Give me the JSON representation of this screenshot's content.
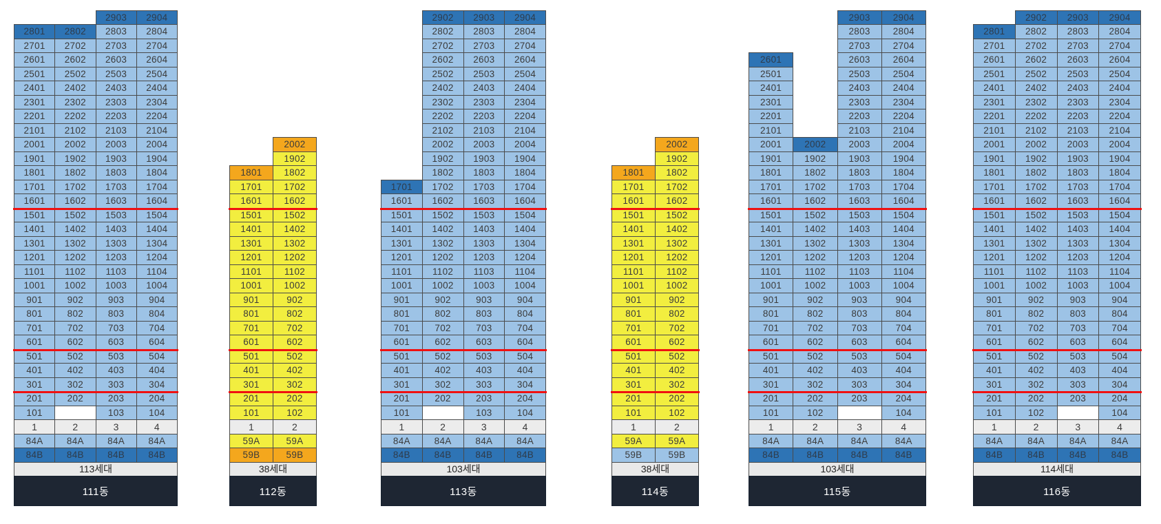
{
  "colors": {
    "light_blue": "#9DC3E6",
    "dark_blue": "#2E74B5",
    "yellow": "#F2EE3F",
    "orange": "#F4A71D",
    "gray_header": "#ECECEC",
    "total_bg": "#E9E9E9",
    "footer_bg": "#1E2633",
    "red_line": "#F01010",
    "border": "#4A4A4A"
  },
  "buildings": [
    {
      "name": "111동",
      "total": "113세대",
      "base": "light",
      "top_floor": 29,
      "red_below_floors": [
        16,
        6,
        3
      ],
      "line_numbers": [
        "1",
        "2",
        "3",
        "4"
      ],
      "type_rows": [
        {
          "style": "light",
          "cells": [
            "84A",
            "84A",
            "84A",
            "84A"
          ]
        },
        {
          "style": "dark",
          "cells": [
            "84B",
            "84B",
            "84B",
            "84B"
          ]
        }
      ],
      "highlights": {
        "2903": "dark",
        "2904": "dark",
        "2801": "dark",
        "2802": "dark"
      },
      "rows": [
        [
          "",
          "",
          "2903",
          "2904"
        ],
        [
          "2801",
          "2802",
          "2803",
          "2804"
        ],
        [
          "2701",
          "2702",
          "2703",
          "2704"
        ],
        [
          "2601",
          "2602",
          "2603",
          "2604"
        ],
        [
          "2501",
          "2502",
          "2503",
          "2504"
        ],
        [
          "2401",
          "2402",
          "2403",
          "2404"
        ],
        [
          "2301",
          "2302",
          "2303",
          "2304"
        ],
        [
          "2201",
          "2202",
          "2203",
          "2204"
        ],
        [
          "2101",
          "2102",
          "2103",
          "2104"
        ],
        [
          "2001",
          "2002",
          "2003",
          "2004"
        ],
        [
          "1901",
          "1902",
          "1903",
          "1904"
        ],
        [
          "1801",
          "1802",
          "1803",
          "1804"
        ],
        [
          "1701",
          "1702",
          "1703",
          "1704"
        ],
        [
          "1601",
          "1602",
          "1603",
          "1604"
        ],
        [
          "1501",
          "1502",
          "1503",
          "1504"
        ],
        [
          "1401",
          "1402",
          "1403",
          "1404"
        ],
        [
          "1301",
          "1302",
          "1303",
          "1304"
        ],
        [
          "1201",
          "1202",
          "1203",
          "1204"
        ],
        [
          "1101",
          "1102",
          "1103",
          "1104"
        ],
        [
          "1001",
          "1002",
          "1003",
          "1004"
        ],
        [
          "901",
          "902",
          "903",
          "904"
        ],
        [
          "801",
          "802",
          "803",
          "804"
        ],
        [
          "701",
          "702",
          "703",
          "704"
        ],
        [
          "601",
          "602",
          "603",
          "604"
        ],
        [
          "501",
          "502",
          "503",
          "504"
        ],
        [
          "401",
          "402",
          "403",
          "404"
        ],
        [
          "301",
          "302",
          "303",
          "304"
        ],
        [
          "201",
          "202",
          "203",
          "204"
        ],
        [
          "101",
          ".",
          "103",
          "104"
        ]
      ]
    },
    {
      "name": "112동",
      "total": "38세대",
      "base": "yellow",
      "top_floor": 20,
      "red_below_floors": [
        16,
        6,
        3
      ],
      "line_numbers": [
        "1",
        "2"
      ],
      "type_rows": [
        {
          "style": "yellow",
          "cells": [
            "59A",
            "59A"
          ]
        },
        {
          "style": "orange",
          "cells": [
            "59B",
            "59B"
          ]
        }
      ],
      "highlights": {
        "2002": "orange",
        "1801": "orange"
      },
      "rows": [
        [
          "",
          "2002"
        ],
        [
          "",
          "1902"
        ],
        [
          "1801",
          "1802"
        ],
        [
          "1701",
          "1702"
        ],
        [
          "1601",
          "1602"
        ],
        [
          "1501",
          "1502"
        ],
        [
          "1401",
          "1402"
        ],
        [
          "1301",
          "1302"
        ],
        [
          "1201",
          "1202"
        ],
        [
          "1101",
          "1102"
        ],
        [
          "1001",
          "1002"
        ],
        [
          "901",
          "902"
        ],
        [
          "801",
          "802"
        ],
        [
          "701",
          "702"
        ],
        [
          "601",
          "602"
        ],
        [
          "501",
          "502"
        ],
        [
          "401",
          "402"
        ],
        [
          "301",
          "302"
        ],
        [
          "201",
          "202"
        ],
        [
          "101",
          "102"
        ]
      ]
    },
    {
      "name": "113동",
      "total": "103세대",
      "base": "light",
      "top_floor": 29,
      "red_below_floors": [
        16,
        6,
        3
      ],
      "line_numbers": [
        "1",
        "2",
        "3",
        "4"
      ],
      "type_rows": [
        {
          "style": "light",
          "cells": [
            "84A",
            "84A",
            "84A",
            "84A"
          ]
        },
        {
          "style": "dark",
          "cells": [
            "84B",
            "84B",
            "84B",
            "84B"
          ]
        }
      ],
      "highlights": {
        "2902": "dark",
        "2903": "dark",
        "2904": "dark",
        "1701": "dark"
      },
      "rows": [
        [
          "",
          "2902",
          "2903",
          "2904"
        ],
        [
          "",
          "2802",
          "2803",
          "2804"
        ],
        [
          "",
          "2702",
          "2703",
          "2704"
        ],
        [
          "",
          "2602",
          "2603",
          "2604"
        ],
        [
          "",
          "2502",
          "2503",
          "2504"
        ],
        [
          "",
          "2402",
          "2403",
          "2404"
        ],
        [
          "",
          "2302",
          "2303",
          "2304"
        ],
        [
          "",
          "2202",
          "2203",
          "2204"
        ],
        [
          "",
          "2102",
          "2103",
          "2104"
        ],
        [
          "",
          "2002",
          "2003",
          "2004"
        ],
        [
          "",
          "1902",
          "1903",
          "1904"
        ],
        [
          "",
          "1802",
          "1803",
          "1804"
        ],
        [
          "1701",
          "1702",
          "1703",
          "1704"
        ],
        [
          "1601",
          "1602",
          "1603",
          "1604"
        ],
        [
          "1501",
          "1502",
          "1503",
          "1504"
        ],
        [
          "1401",
          "1402",
          "1403",
          "1404"
        ],
        [
          "1301",
          "1302",
          "1303",
          "1304"
        ],
        [
          "1201",
          "1202",
          "1203",
          "1204"
        ],
        [
          "1101",
          "1102",
          "1103",
          "1104"
        ],
        [
          "1001",
          "1002",
          "1003",
          "1004"
        ],
        [
          "901",
          "902",
          "903",
          "904"
        ],
        [
          "801",
          "802",
          "803",
          "804"
        ],
        [
          "701",
          "702",
          "703",
          "704"
        ],
        [
          "601",
          "602",
          "603",
          "604"
        ],
        [
          "501",
          "502",
          "503",
          "504"
        ],
        [
          "401",
          "402",
          "403",
          "404"
        ],
        [
          "301",
          "302",
          "303",
          "304"
        ],
        [
          "201",
          "202",
          "203",
          "204"
        ],
        [
          "101",
          ".",
          "103",
          "104"
        ]
      ]
    },
    {
      "name": "114동",
      "total": "38세대",
      "base": "yellow",
      "top_floor": 20,
      "red_below_floors": [
        16,
        6,
        3
      ],
      "line_numbers": [
        "1",
        "2"
      ],
      "type_rows": [
        {
          "style": "yellow",
          "cells": [
            "59A",
            "59A"
          ]
        },
        {
          "style": "light",
          "cells": [
            "59B",
            "59B"
          ]
        }
      ],
      "highlights": {
        "2002": "orange",
        "1801": "orange"
      },
      "rows": [
        [
          "",
          "2002"
        ],
        [
          "",
          "1902"
        ],
        [
          "1801",
          "1802"
        ],
        [
          "1701",
          "1702"
        ],
        [
          "1601",
          "1602"
        ],
        [
          "1501",
          "1502"
        ],
        [
          "1401",
          "1402"
        ],
        [
          "1301",
          "1302"
        ],
        [
          "1201",
          "1202"
        ],
        [
          "1101",
          "1102"
        ],
        [
          "1001",
          "1002"
        ],
        [
          "901",
          "902"
        ],
        [
          "801",
          "802"
        ],
        [
          "701",
          "702"
        ],
        [
          "601",
          "602"
        ],
        [
          "501",
          "502"
        ],
        [
          "401",
          "402"
        ],
        [
          "301",
          "302"
        ],
        [
          "201",
          "202"
        ],
        [
          "101",
          "102"
        ]
      ]
    },
    {
      "name": "115동",
      "total": "103세대",
      "base": "light",
      "top_floor": 29,
      "red_below_floors": [
        16,
        6,
        3
      ],
      "line_numbers": [
        "1",
        "2",
        "3",
        "4"
      ],
      "type_rows": [
        {
          "style": "light",
          "cells": [
            "84A",
            "84A",
            "84A",
            "84A"
          ]
        },
        {
          "style": "dark",
          "cells": [
            "84B",
            "84B",
            "84B",
            "84B"
          ]
        }
      ],
      "highlights": {
        "2903": "dark",
        "2904": "dark",
        "2601": "dark",
        "2002": "dark"
      },
      "rows": [
        [
          "",
          "",
          "2903",
          "2904"
        ],
        [
          "",
          "",
          "2803",
          "2804"
        ],
        [
          "",
          "",
          "2703",
          "2704"
        ],
        [
          "2601",
          "",
          "2603",
          "2604"
        ],
        [
          "2501",
          "",
          "2503",
          "2504"
        ],
        [
          "2401",
          "",
          "2403",
          "2404"
        ],
        [
          "2301",
          "",
          "2303",
          "2304"
        ],
        [
          "2201",
          "",
          "2203",
          "2204"
        ],
        [
          "2101",
          "",
          "2103",
          "2104"
        ],
        [
          "2001",
          "2002",
          "2003",
          "2004"
        ],
        [
          "1901",
          "1902",
          "1903",
          "1904"
        ],
        [
          "1801",
          "1802",
          "1803",
          "1804"
        ],
        [
          "1701",
          "1702",
          "1703",
          "1704"
        ],
        [
          "1601",
          "1602",
          "1603",
          "1604"
        ],
        [
          "1501",
          "1502",
          "1503",
          "1504"
        ],
        [
          "1401",
          "1402",
          "1403",
          "1404"
        ],
        [
          "1301",
          "1302",
          "1303",
          "1304"
        ],
        [
          "1201",
          "1202",
          "1203",
          "1204"
        ],
        [
          "1101",
          "1102",
          "1103",
          "1104"
        ],
        [
          "1001",
          "1002",
          "1003",
          "1004"
        ],
        [
          "901",
          "902",
          "903",
          "904"
        ],
        [
          "801",
          "802",
          "803",
          "804"
        ],
        [
          "701",
          "702",
          "703",
          "704"
        ],
        [
          "601",
          "602",
          "603",
          "604"
        ],
        [
          "501",
          "502",
          "503",
          "504"
        ],
        [
          "401",
          "402",
          "403",
          "404"
        ],
        [
          "301",
          "302",
          "303",
          "304"
        ],
        [
          "201",
          "202",
          "203",
          "204"
        ],
        [
          "101",
          "102",
          ".",
          "104"
        ]
      ]
    },
    {
      "name": "116동",
      "total": "114세대",
      "base": "light",
      "top_floor": 29,
      "red_below_floors": [
        16,
        6,
        3
      ],
      "line_numbers": [
        "1",
        "2",
        "3",
        "4"
      ],
      "type_rows": [
        {
          "style": "light",
          "cells": [
            "84A",
            "84A",
            "84A",
            "84A"
          ]
        },
        {
          "style": "dark",
          "cells": [
            "84B",
            "84B",
            "84B",
            "84B"
          ]
        }
      ],
      "highlights": {
        "2902": "dark",
        "2903": "dark",
        "2904": "dark",
        "2801": "dark"
      },
      "rows": [
        [
          "",
          "2902",
          "2903",
          "2904"
        ],
        [
          "2801",
          "2802",
          "2803",
          "2804"
        ],
        [
          "2701",
          "2702",
          "2703",
          "2704"
        ],
        [
          "2601",
          "2602",
          "2603",
          "2604"
        ],
        [
          "2501",
          "2502",
          "2503",
          "2504"
        ],
        [
          "2401",
          "2402",
          "2403",
          "2404"
        ],
        [
          "2301",
          "2302",
          "2303",
          "2304"
        ],
        [
          "2201",
          "2202",
          "2203",
          "2204"
        ],
        [
          "2101",
          "2102",
          "2103",
          "2104"
        ],
        [
          "2001",
          "2002",
          "2003",
          "2004"
        ],
        [
          "1901",
          "1902",
          "1903",
          "1904"
        ],
        [
          "1801",
          "1802",
          "1803",
          "1804"
        ],
        [
          "1701",
          "1702",
          "1703",
          "1704"
        ],
        [
          "1601",
          "1602",
          "1603",
          "1604"
        ],
        [
          "1501",
          "1502",
          "1503",
          "1504"
        ],
        [
          "1401",
          "1402",
          "1403",
          "1404"
        ],
        [
          "1301",
          "1302",
          "1303",
          "1304"
        ],
        [
          "1201",
          "1202",
          "1203",
          "1204"
        ],
        [
          "1101",
          "1102",
          "1103",
          "1104"
        ],
        [
          "1001",
          "1002",
          "1003",
          "1004"
        ],
        [
          "901",
          "902",
          "903",
          "904"
        ],
        [
          "801",
          "802",
          "803",
          "804"
        ],
        [
          "701",
          "702",
          "703",
          "704"
        ],
        [
          "601",
          "602",
          "603",
          "604"
        ],
        [
          "501",
          "502",
          "503",
          "504"
        ],
        [
          "401",
          "402",
          "403",
          "404"
        ],
        [
          "301",
          "302",
          "303",
          "304"
        ],
        [
          "201",
          "202",
          "203",
          "204"
        ],
        [
          "101",
          "102",
          ".",
          "104"
        ]
      ]
    }
  ]
}
